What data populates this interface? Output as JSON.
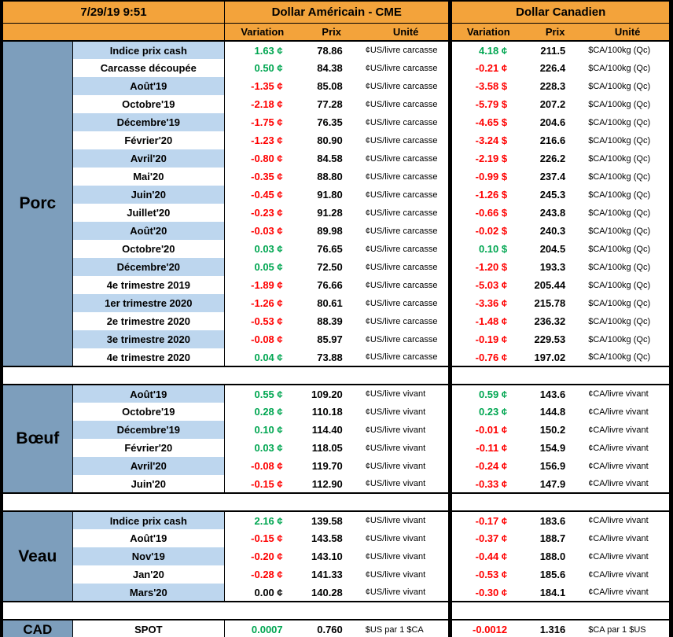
{
  "meta": {
    "timestamp": "7/29/19 9:51"
  },
  "header": {
    "us_title": "Dollar Américain - CME",
    "ca_title": "Dollar Canadien",
    "col_variation": "Variation",
    "col_prix": "Prix",
    "col_unite": "Unité"
  },
  "colors": {
    "header_orange": "#F3A33B",
    "section_blue": "#7D9EBC",
    "row_stripe_blue": "#BDD6EE",
    "positive_green": "#00A651",
    "negative_red": "#FF0000",
    "neutral_black": "#000000"
  },
  "sections": [
    {
      "name": "Porc",
      "striped": true,
      "rows": [
        {
          "label": "Indice prix cash",
          "us_var": "1.63 ¢",
          "us_color": "green",
          "us_prix": "78.86",
          "us_unit": "¢US/livre carcasse",
          "ca_var": "4.18 ¢",
          "ca_color": "green",
          "ca_prix": "211.5",
          "ca_unit": "$CA/100kg (Qc)"
        },
        {
          "label": "Carcasse découpée",
          "us_var": "0.50 ¢",
          "us_color": "green",
          "us_prix": "84.38",
          "us_unit": "¢US/livre carcasse",
          "ca_var": "-0.21 ¢",
          "ca_color": "red",
          "ca_prix": "226.4",
          "ca_unit": "$CA/100kg (Qc)"
        },
        {
          "label": "Août'19",
          "us_var": "-1.35 ¢",
          "us_color": "red",
          "us_prix": "85.08",
          "us_unit": "¢US/livre carcasse",
          "ca_var": "-3.58 $",
          "ca_color": "red",
          "ca_prix": "228.3",
          "ca_unit": "$CA/100kg (Qc)"
        },
        {
          "label": "Octobre'19",
          "us_var": "-2.18 ¢",
          "us_color": "red",
          "us_prix": "77.28",
          "us_unit": "¢US/livre carcasse",
          "ca_var": "-5.79 $",
          "ca_color": "red",
          "ca_prix": "207.2",
          "ca_unit": "$CA/100kg (Qc)"
        },
        {
          "label": "Décembre'19",
          "us_var": "-1.75 ¢",
          "us_color": "red",
          "us_prix": "76.35",
          "us_unit": "¢US/livre carcasse",
          "ca_var": "-4.65 $",
          "ca_color": "red",
          "ca_prix": "204.6",
          "ca_unit": "$CA/100kg (Qc)"
        },
        {
          "label": "Février'20",
          "us_var": "-1.23 ¢",
          "us_color": "red",
          "us_prix": "80.90",
          "us_unit": "¢US/livre carcasse",
          "ca_var": "-3.24 $",
          "ca_color": "red",
          "ca_prix": "216.6",
          "ca_unit": "$CA/100kg (Qc)"
        },
        {
          "label": "Avril'20",
          "us_var": "-0.80 ¢",
          "us_color": "red",
          "us_prix": "84.58",
          "us_unit": "¢US/livre carcasse",
          "ca_var": "-2.19 $",
          "ca_color": "red",
          "ca_prix": "226.2",
          "ca_unit": "$CA/100kg (Qc)"
        },
        {
          "label": "Mai'20",
          "us_var": "-0.35 ¢",
          "us_color": "red",
          "us_prix": "88.80",
          "us_unit": "¢US/livre carcasse",
          "ca_var": "-0.99 $",
          "ca_color": "red",
          "ca_prix": "237.4",
          "ca_unit": "$CA/100kg (Qc)"
        },
        {
          "label": "Juin'20",
          "us_var": "-0.45 ¢",
          "us_color": "red",
          "us_prix": "91.80",
          "us_unit": "¢US/livre carcasse",
          "ca_var": "-1.26 $",
          "ca_color": "red",
          "ca_prix": "245.3",
          "ca_unit": "$CA/100kg (Qc)"
        },
        {
          "label": "Juillet'20",
          "us_var": "-0.23 ¢",
          "us_color": "red",
          "us_prix": "91.28",
          "us_unit": "¢US/livre carcasse",
          "ca_var": "-0.66 $",
          "ca_color": "red",
          "ca_prix": "243.8",
          "ca_unit": "$CA/100kg (Qc)"
        },
        {
          "label": "Août'20",
          "us_var": "-0.03 ¢",
          "us_color": "red",
          "us_prix": "89.98",
          "us_unit": "¢US/livre carcasse",
          "ca_var": "-0.02 $",
          "ca_color": "red",
          "ca_prix": "240.3",
          "ca_unit": "$CA/100kg (Qc)"
        },
        {
          "label": "Octobre'20",
          "us_var": "0.03 ¢",
          "us_color": "green",
          "us_prix": "76.65",
          "us_unit": "¢US/livre carcasse",
          "ca_var": "0.10 $",
          "ca_color": "green",
          "ca_prix": "204.5",
          "ca_unit": "$CA/100kg (Qc)"
        },
        {
          "label": "Décembre'20",
          "us_var": "0.05 ¢",
          "us_color": "green",
          "us_prix": "72.50",
          "us_unit": "¢US/livre carcasse",
          "ca_var": "-1.20 $",
          "ca_color": "red",
          "ca_prix": "193.3",
          "ca_unit": "$CA/100kg (Qc)"
        },
        {
          "label": "4e trimestre 2019",
          "us_var": "-1.89 ¢",
          "us_color": "red",
          "us_prix": "76.66",
          "us_unit": "¢US/livre carcasse",
          "ca_var": "-5.03 ¢",
          "ca_color": "red",
          "ca_prix": "205.44",
          "ca_unit": "$CA/100kg (Qc)"
        },
        {
          "label": "1er trimestre 2020",
          "us_var": "-1.26 ¢",
          "us_color": "red",
          "us_prix": "80.61",
          "us_unit": "¢US/livre carcasse",
          "ca_var": "-3.36 ¢",
          "ca_color": "red",
          "ca_prix": "215.78",
          "ca_unit": "$CA/100kg (Qc)"
        },
        {
          "label": "2e trimestre 2020",
          "us_var": "-0.53 ¢",
          "us_color": "red",
          "us_prix": "88.39",
          "us_unit": "¢US/livre carcasse",
          "ca_var": "-1.48 ¢",
          "ca_color": "red",
          "ca_prix": "236.32",
          "ca_unit": "$CA/100kg (Qc)"
        },
        {
          "label": "3e trimestre 2020",
          "us_var": "-0.08 ¢",
          "us_color": "red",
          "us_prix": "85.97",
          "us_unit": "¢US/livre carcasse",
          "ca_var": "-0.19 ¢",
          "ca_color": "red",
          "ca_prix": "229.53",
          "ca_unit": "$CA/100kg (Qc)"
        },
        {
          "label": "4e trimestre 2020",
          "us_var": "0.04 ¢",
          "us_color": "green",
          "us_prix": "73.88",
          "us_unit": "¢US/livre carcasse",
          "ca_var": "-0.76 ¢",
          "ca_color": "red",
          "ca_prix": "197.02",
          "ca_unit": "$CA/100kg (Qc)"
        }
      ]
    },
    {
      "name": "Bœuf",
      "striped": true,
      "rows": [
        {
          "label": "Août'19",
          "us_var": "0.55 ¢",
          "us_color": "green",
          "us_prix": "109.20",
          "us_unit": "¢US/livre vivant",
          "ca_var": "0.59 ¢",
          "ca_color": "green",
          "ca_prix": "143.6",
          "ca_unit": "¢CA/livre vivant"
        },
        {
          "label": "Octobre'19",
          "us_var": "0.28 ¢",
          "us_color": "green",
          "us_prix": "110.18",
          "us_unit": "¢US/livre vivant",
          "ca_var": "0.23 ¢",
          "ca_color": "green",
          "ca_prix": "144.8",
          "ca_unit": "¢CA/livre vivant"
        },
        {
          "label": "Décembre'19",
          "us_var": "0.10 ¢",
          "us_color": "green",
          "us_prix": "114.40",
          "us_unit": "¢US/livre vivant",
          "ca_var": "-0.01 ¢",
          "ca_color": "red",
          "ca_prix": "150.2",
          "ca_unit": "¢CA/livre vivant"
        },
        {
          "label": "Février'20",
          "us_var": "0.03 ¢",
          "us_color": "green",
          "us_prix": "118.05",
          "us_unit": "¢US/livre vivant",
          "ca_var": "-0.11 ¢",
          "ca_color": "red",
          "ca_prix": "154.9",
          "ca_unit": "¢CA/livre vivant"
        },
        {
          "label": "Avril'20",
          "us_var": "-0.08 ¢",
          "us_color": "red",
          "us_prix": "119.70",
          "us_unit": "¢US/livre vivant",
          "ca_var": "-0.24 ¢",
          "ca_color": "red",
          "ca_prix": "156.9",
          "ca_unit": "¢CA/livre vivant"
        },
        {
          "label": "Juin'20",
          "us_var": "-0.15 ¢",
          "us_color": "red",
          "us_prix": "112.90",
          "us_unit": "¢US/livre vivant",
          "ca_var": "-0.33 ¢",
          "ca_color": "red",
          "ca_prix": "147.9",
          "ca_unit": "¢CA/livre vivant"
        }
      ]
    },
    {
      "name": "Veau",
      "striped": true,
      "rows": [
        {
          "label": "Indice prix cash",
          "us_var": "2.16 ¢",
          "us_color": "green",
          "us_prix": "139.58",
          "us_unit": "¢US/livre vivant",
          "ca_var": "-0.17 ¢",
          "ca_color": "red",
          "ca_prix": "183.6",
          "ca_unit": "¢CA/livre vivant"
        },
        {
          "label": "Août'19",
          "us_var": "-0.15 ¢",
          "us_color": "red",
          "us_prix": "143.58",
          "us_unit": "¢US/livre vivant",
          "ca_var": "-0.37 ¢",
          "ca_color": "red",
          "ca_prix": "188.7",
          "ca_unit": "¢CA/livre vivant"
        },
        {
          "label": "Nov'19",
          "us_var": "-0.20 ¢",
          "us_color": "red",
          "us_prix": "143.10",
          "us_unit": "¢US/livre vivant",
          "ca_var": "-0.44 ¢",
          "ca_color": "red",
          "ca_prix": "188.0",
          "ca_unit": "¢CA/livre vivant"
        },
        {
          "label": "Jan'20",
          "us_var": "-0.28 ¢",
          "us_color": "red",
          "us_prix": "141.33",
          "us_unit": "¢US/livre vivant",
          "ca_var": "-0.53 ¢",
          "ca_color": "red",
          "ca_prix": "185.6",
          "ca_unit": "¢CA/livre vivant"
        },
        {
          "label": "Mars'20",
          "us_var": "0.00 ¢",
          "us_color": "black",
          "us_prix": "140.28",
          "us_unit": "¢US/livre vivant",
          "ca_var": "-0.30 ¢",
          "ca_color": "red",
          "ca_prix": "184.1",
          "ca_unit": "¢CA/livre vivant"
        }
      ]
    },
    {
      "name": "CAD",
      "striped": false,
      "rows": [
        {
          "label": "SPOT",
          "us_var": "0.0007",
          "us_color": "green",
          "us_prix": "0.760",
          "us_unit": "$US par 1 $CA",
          "ca_var": "-0.0012",
          "ca_color": "red",
          "ca_prix": "1.316",
          "ca_unit": "$CA par 1 $US"
        }
      ]
    }
  ]
}
